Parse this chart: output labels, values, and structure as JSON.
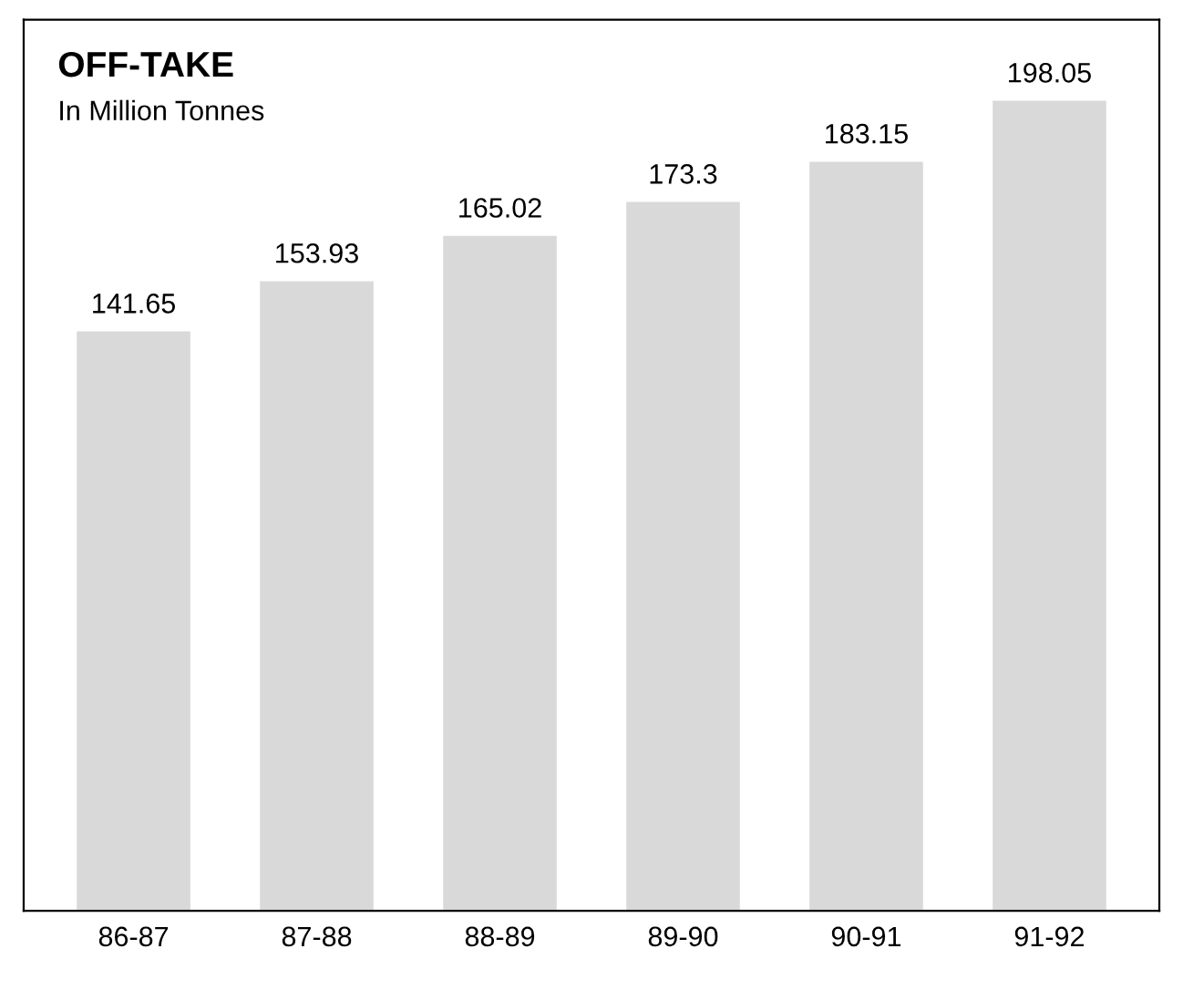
{
  "chart_data": {
    "type": "bar",
    "title": "OFF-TAKE",
    "subtitle": "In Million Tonnes",
    "categories": [
      "86-87",
      "87-88",
      "88-89",
      "89-90",
      "90-91",
      "91-92"
    ],
    "values": [
      141.65,
      153.93,
      165.02,
      173.3,
      183.15,
      198.05
    ],
    "color": "#d9d9d9",
    "data_labels": true,
    "grid": false,
    "legend": false
  }
}
